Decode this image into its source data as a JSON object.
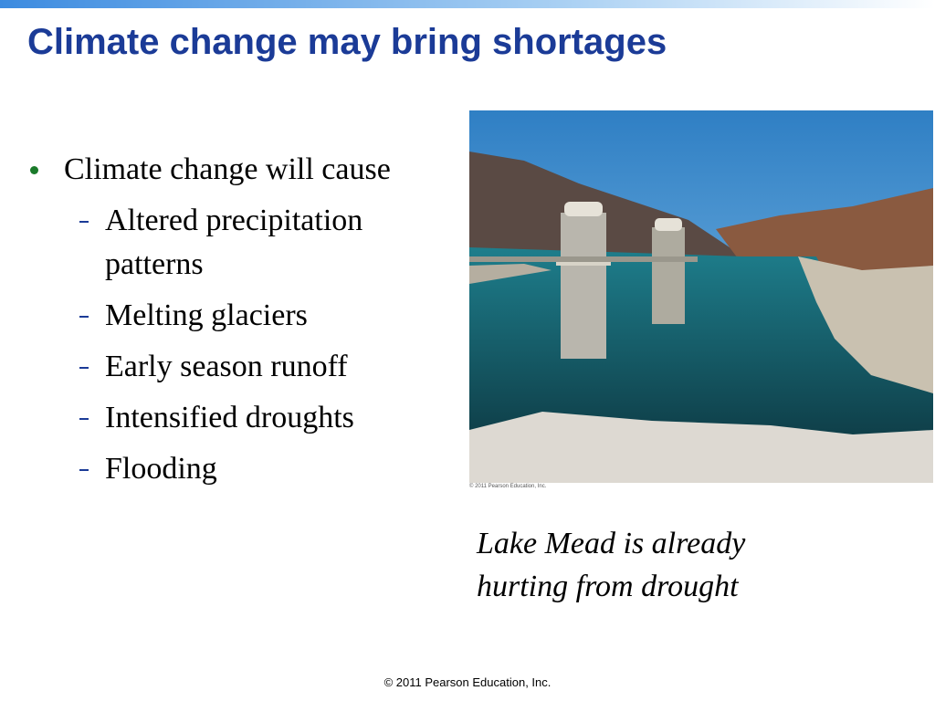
{
  "header": {
    "title": "Climate change may bring shortages"
  },
  "body": {
    "bullet": "Climate change will cause",
    "items": [
      "Altered precipitation patterns",
      "Melting glaciers",
      "Early season runoff",
      "Intensified droughts",
      "Flooding"
    ]
  },
  "photo": {
    "credit": "© 2011 Pearson Education, Inc.",
    "caption": "Lake Mead is already hurting from drought"
  },
  "footer": {
    "copyright": "© 2011 Pearson Education, Inc."
  }
}
